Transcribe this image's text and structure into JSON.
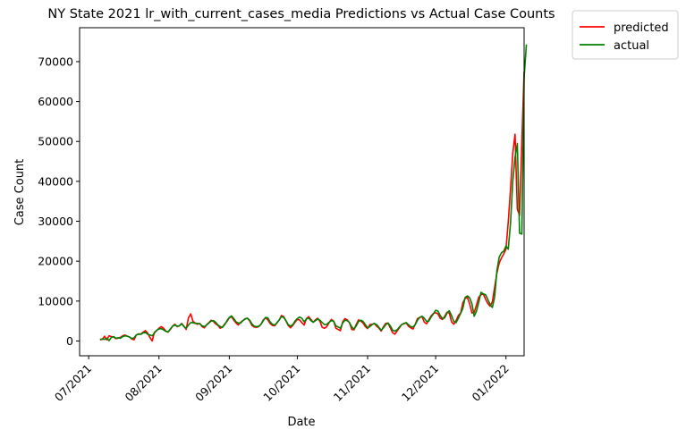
{
  "chart_data": {
    "type": "line",
    "title": "NY State 2021 lr_with_current_cases_media Predictions vs Actual Case Counts",
    "xlabel": "Date",
    "ylabel": "Case Count",
    "x_start": "2021-07-06",
    "x_end": "2021-12-31",
    "xlim": [
      "2021-06-27",
      "2022-01-09"
    ],
    "ylim": [
      -3700,
      78500
    ],
    "xticks": [
      {
        "date": "2021-07-01",
        "label": "07/2021"
      },
      {
        "date": "2021-08-01",
        "label": "08/2021"
      },
      {
        "date": "2021-09-01",
        "label": "09/2021"
      },
      {
        "date": "2021-10-01",
        "label": "10/2021"
      },
      {
        "date": "2021-11-01",
        "label": "11/2021"
      },
      {
        "date": "2021-12-01",
        "label": "12/2021"
      },
      {
        "date": "2022-01-01",
        "label": "01/2022"
      }
    ],
    "yticks": [
      0,
      10000,
      20000,
      30000,
      40000,
      50000,
      60000,
      70000
    ],
    "grid": false,
    "legend_position": "outside-top-right",
    "series": [
      {
        "name": "predicted",
        "color": "#ff0000",
        "values": [
          300,
          400,
          1200,
          300,
          1300,
          1100,
          1000,
          600,
          700,
          900,
          1300,
          1500,
          1200,
          1000,
          500,
          300,
          1500,
          1800,
          1700,
          2200,
          2600,
          2000,
          900,
          0,
          2200,
          2600,
          3200,
          3600,
          3200,
          2500,
          2200,
          2900,
          3700,
          4200,
          3600,
          3800,
          4400,
          3700,
          2900,
          5800,
          6800,
          4900,
          4500,
          4200,
          4400,
          3600,
          3300,
          4100,
          4600,
          5200,
          4900,
          4300,
          3900,
          3200,
          3500,
          4300,
          4900,
          5800,
          6100,
          5200,
          4500,
          4000,
          4700,
          5100,
          5600,
          5700,
          5000,
          3900,
          3500,
          3400,
          3600,
          4200,
          5300,
          5800,
          5300,
          4400,
          3900,
          3800,
          4600,
          5200,
          6400,
          6100,
          5000,
          3900,
          3300,
          3900,
          4700,
          5400,
          5300,
          4600,
          4000,
          5600,
          6100,
          5400,
          4700,
          5300,
          5700,
          4900,
          3400,
          3200,
          3600,
          4600,
          5400,
          5000,
          3200,
          2900,
          2600,
          4800,
          5600,
          5300,
          4600,
          2900,
          2800,
          4200,
          5300,
          5000,
          4500,
          3600,
          3100,
          4100,
          4200,
          4400,
          3700,
          3200,
          2500,
          3600,
          4400,
          4500,
          3300,
          2100,
          1700,
          2500,
          3300,
          4100,
          4300,
          4500,
          3700,
          3300,
          3000,
          4200,
          5600,
          5900,
          6100,
          4700,
          4300,
          5300,
          6300,
          6900,
          7100,
          6800,
          5700,
          5400,
          6200,
          7200,
          7000,
          4800,
          4200,
          5100,
          6400,
          7000,
          9600,
          10700,
          10900,
          9300,
          7000,
          7200,
          9000,
          11000,
          11600,
          11800,
          10500,
          9400,
          8700,
          9800,
          13500,
          17000,
          19500,
          20800,
          21800,
          23000,
          29800,
          38000,
          47000,
          51800,
          33000,
          31500,
          50000,
          67500
        ]
      },
      {
        "name": "actual",
        "color": "#008000",
        "values": [
          400,
          500,
          400,
          700,
          100,
          900,
          1100,
          700,
          800,
          700,
          1100,
          1300,
          1200,
          1000,
          600,
          800,
          1500,
          1700,
          1700,
          2000,
          2200,
          1700,
          1500,
          1300,
          2000,
          2700,
          3000,
          3100,
          2800,
          2400,
          2300,
          3000,
          3700,
          4000,
          3700,
          3800,
          4300,
          3600,
          3200,
          4000,
          4600,
          4600,
          4400,
          4400,
          4300,
          3800,
          3600,
          4000,
          4500,
          5000,
          5100,
          4700,
          4000,
          3600,
          3400,
          4100,
          5100,
          5900,
          6300,
          5600,
          4800,
          4500,
          4500,
          5100,
          5500,
          5700,
          5200,
          4300,
          3700,
          3600,
          3700,
          4200,
          5100,
          5900,
          5800,
          4800,
          4200,
          4000,
          4500,
          5300,
          6100,
          5900,
          5100,
          4100,
          3700,
          4100,
          5000,
          5600,
          6000,
          5700,
          4800,
          5500,
          5800,
          5100,
          4700,
          5100,
          5500,
          5200,
          4600,
          4100,
          4200,
          4700,
          5100,
          5000,
          3800,
          3500,
          3200,
          4500,
          5200,
          5100,
          4600,
          3500,
          3000,
          3800,
          4900,
          5200,
          4900,
          4100,
          3300,
          3600,
          4100,
          4400,
          4100,
          3400,
          2700,
          3300,
          4100,
          4500,
          3800,
          2700,
          2500,
          2800,
          3500,
          4100,
          4400,
          4600,
          4100,
          3600,
          3500,
          4100,
          5200,
          5900,
          6200,
          5700,
          4900,
          5000,
          6000,
          6800,
          7700,
          7500,
          6400,
          5600,
          5800,
          7000,
          7600,
          6400,
          4900,
          4600,
          5700,
          6900,
          8200,
          10900,
          11300,
          10800,
          9300,
          6200,
          7500,
          9700,
          12200,
          11800,
          11600,
          10400,
          9200,
          8400,
          11000,
          17600,
          21000,
          22100,
          22500,
          23800,
          23000,
          29500,
          40000,
          46000,
          49500,
          27000,
          26800,
          66000,
          74300
        ]
      }
    ]
  }
}
